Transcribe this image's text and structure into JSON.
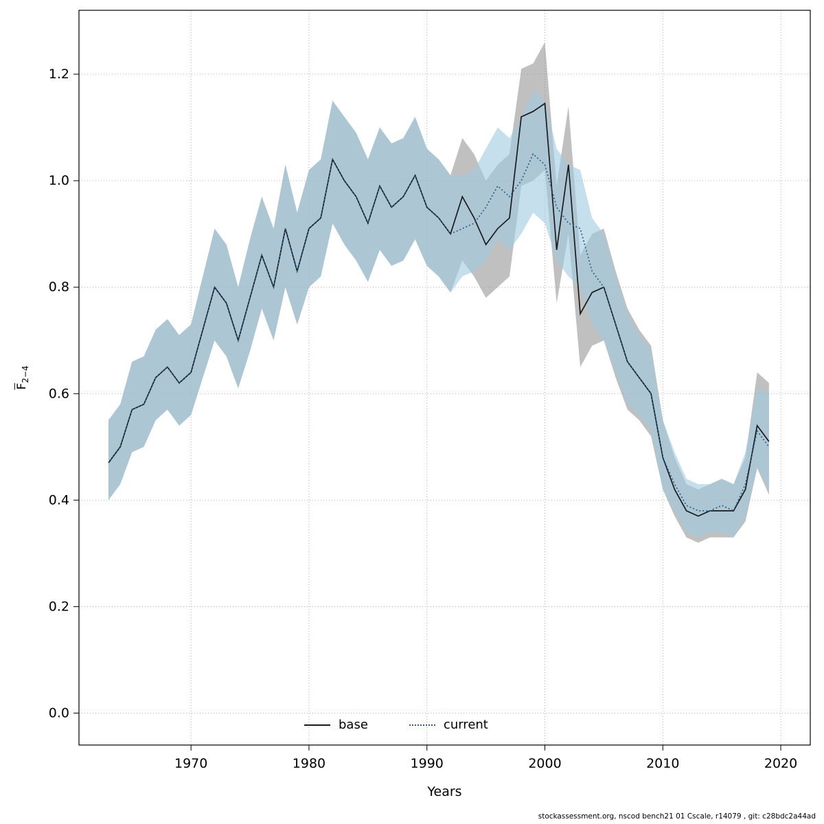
{
  "figure": {
    "background": "#ffffff",
    "footer": "stockassessment.org, nscod bench21 01 Cscale, r14079 , git: c28bdc2a44ad"
  },
  "axes": {
    "xlabel": "Years",
    "ylabel_letter": "F",
    "ylabel_sub": "2−4"
  },
  "legend": {
    "items": [
      {
        "label": "base",
        "style": "solid",
        "color": "#1a1a1a"
      },
      {
        "label": "current",
        "style": "dotted",
        "color": "#2b5d8c"
      }
    ]
  },
  "chart_data": {
    "type": "line",
    "title": "",
    "xlabel": "Years",
    "ylabel": "Fbar 2-4",
    "grid": true,
    "legend_position": "bottom-center-inside",
    "xlim": [
      1960.5,
      2022.5
    ],
    "ylim": [
      -0.06,
      1.32
    ],
    "xticks": [
      1970,
      1980,
      1990,
      2000,
      2010,
      2020
    ],
    "yticks": [
      0.0,
      0.2,
      0.4,
      0.6,
      0.8,
      1.0,
      1.2
    ],
    "grid_color": "#b0b0b0",
    "years": [
      1963,
      1964,
      1965,
      1966,
      1967,
      1968,
      1969,
      1970,
      1971,
      1972,
      1973,
      1974,
      1975,
      1976,
      1977,
      1978,
      1979,
      1980,
      1981,
      1982,
      1983,
      1984,
      1985,
      1986,
      1987,
      1988,
      1989,
      1990,
      1991,
      1992,
      1993,
      1994,
      1995,
      1996,
      1997,
      1998,
      1999,
      2000,
      2001,
      2002,
      2003,
      2004,
      2005,
      2006,
      2007,
      2008,
      2009,
      2010,
      2011,
      2012,
      2013,
      2014,
      2015,
      2016,
      2017,
      2018,
      2019
    ],
    "series": [
      {
        "name": "base",
        "line": "solid",
        "color": "#1a1a1a",
        "band_color": "#8c8c8c",
        "band_opacity": 0.55,
        "values": [
          0.47,
          0.5,
          0.57,
          0.58,
          0.63,
          0.65,
          0.62,
          0.64,
          0.72,
          0.8,
          0.77,
          0.7,
          0.78,
          0.86,
          0.8,
          0.91,
          0.83,
          0.91,
          0.93,
          1.04,
          1.0,
          0.97,
          0.92,
          0.99,
          0.95,
          0.97,
          1.01,
          0.95,
          0.93,
          0.9,
          0.97,
          0.93,
          0.88,
          0.91,
          0.93,
          1.12,
          1.13,
          1.145,
          0.87,
          1.03,
          0.75,
          0.79,
          0.8,
          0.73,
          0.66,
          0.63,
          0.6,
          0.48,
          0.42,
          0.38,
          0.37,
          0.38,
          0.38,
          0.38,
          0.42,
          0.54,
          0.51
        ],
        "lower": [
          0.4,
          0.43,
          0.49,
          0.5,
          0.55,
          0.57,
          0.54,
          0.56,
          0.63,
          0.7,
          0.67,
          0.61,
          0.68,
          0.76,
          0.7,
          0.8,
          0.73,
          0.8,
          0.82,
          0.92,
          0.88,
          0.85,
          0.81,
          0.87,
          0.84,
          0.85,
          0.89,
          0.84,
          0.82,
          0.79,
          0.85,
          0.82,
          0.78,
          0.8,
          0.82,
          0.99,
          1.0,
          1.02,
          0.77,
          0.9,
          0.65,
          0.69,
          0.7,
          0.63,
          0.57,
          0.55,
          0.52,
          0.42,
          0.37,
          0.33,
          0.32,
          0.33,
          0.33,
          0.33,
          0.36,
          0.46,
          0.41
        ],
        "upper": [
          0.55,
          0.58,
          0.66,
          0.67,
          0.72,
          0.74,
          0.71,
          0.73,
          0.82,
          0.91,
          0.88,
          0.8,
          0.89,
          0.97,
          0.91,
          1.03,
          0.94,
          1.02,
          1.04,
          1.15,
          1.12,
          1.09,
          1.04,
          1.1,
          1.07,
          1.08,
          1.12,
          1.06,
          1.04,
          1.01,
          1.08,
          1.05,
          1.0,
          1.03,
          1.05,
          1.21,
          1.22,
          1.26,
          0.99,
          1.14,
          0.86,
          0.9,
          0.91,
          0.83,
          0.76,
          0.72,
          0.69,
          0.55,
          0.48,
          0.43,
          0.42,
          0.43,
          0.44,
          0.43,
          0.48,
          0.64,
          0.62
        ]
      },
      {
        "name": "current",
        "line": "dotted",
        "color": "#2b5d8c",
        "band_color": "#9ecae1",
        "band_opacity": 0.6,
        "values": [
          0.47,
          0.5,
          0.57,
          0.58,
          0.63,
          0.65,
          0.62,
          0.64,
          0.72,
          0.8,
          0.77,
          0.7,
          0.78,
          0.86,
          0.8,
          0.91,
          0.83,
          0.91,
          0.93,
          1.04,
          1.0,
          0.97,
          0.92,
          0.99,
          0.95,
          0.97,
          1.01,
          0.95,
          0.93,
          0.9,
          0.91,
          0.92,
          0.95,
          0.99,
          0.97,
          1.0,
          1.05,
          1.03,
          0.95,
          0.92,
          0.91,
          0.83,
          0.8,
          0.73,
          0.66,
          0.63,
          0.6,
          0.48,
          0.43,
          0.39,
          0.38,
          0.38,
          0.39,
          0.38,
          0.43,
          0.53,
          0.5
        ],
        "lower": [
          0.4,
          0.43,
          0.49,
          0.5,
          0.55,
          0.57,
          0.54,
          0.56,
          0.63,
          0.7,
          0.67,
          0.61,
          0.68,
          0.76,
          0.7,
          0.8,
          0.73,
          0.8,
          0.82,
          0.92,
          0.88,
          0.85,
          0.81,
          0.87,
          0.84,
          0.85,
          0.89,
          0.84,
          0.82,
          0.79,
          0.82,
          0.83,
          0.85,
          0.89,
          0.87,
          0.9,
          0.94,
          0.92,
          0.85,
          0.82,
          0.8,
          0.73,
          0.7,
          0.64,
          0.58,
          0.56,
          0.53,
          0.42,
          0.38,
          0.34,
          0.33,
          0.34,
          0.34,
          0.33,
          0.37,
          0.46,
          0.42
        ],
        "upper": [
          0.55,
          0.58,
          0.66,
          0.67,
          0.72,
          0.74,
          0.71,
          0.73,
          0.82,
          0.91,
          0.88,
          0.8,
          0.89,
          0.97,
          0.91,
          1.03,
          0.94,
          1.02,
          1.04,
          1.15,
          1.12,
          1.09,
          1.04,
          1.1,
          1.07,
          1.08,
          1.12,
          1.06,
          1.04,
          1.01,
          1.01,
          1.02,
          1.06,
          1.1,
          1.08,
          1.12,
          1.17,
          1.15,
          1.06,
          1.03,
          1.02,
          0.93,
          0.9,
          0.82,
          0.75,
          0.71,
          0.68,
          0.55,
          0.49,
          0.44,
          0.43,
          0.43,
          0.44,
          0.43,
          0.49,
          0.61,
          0.6
        ]
      }
    ]
  }
}
